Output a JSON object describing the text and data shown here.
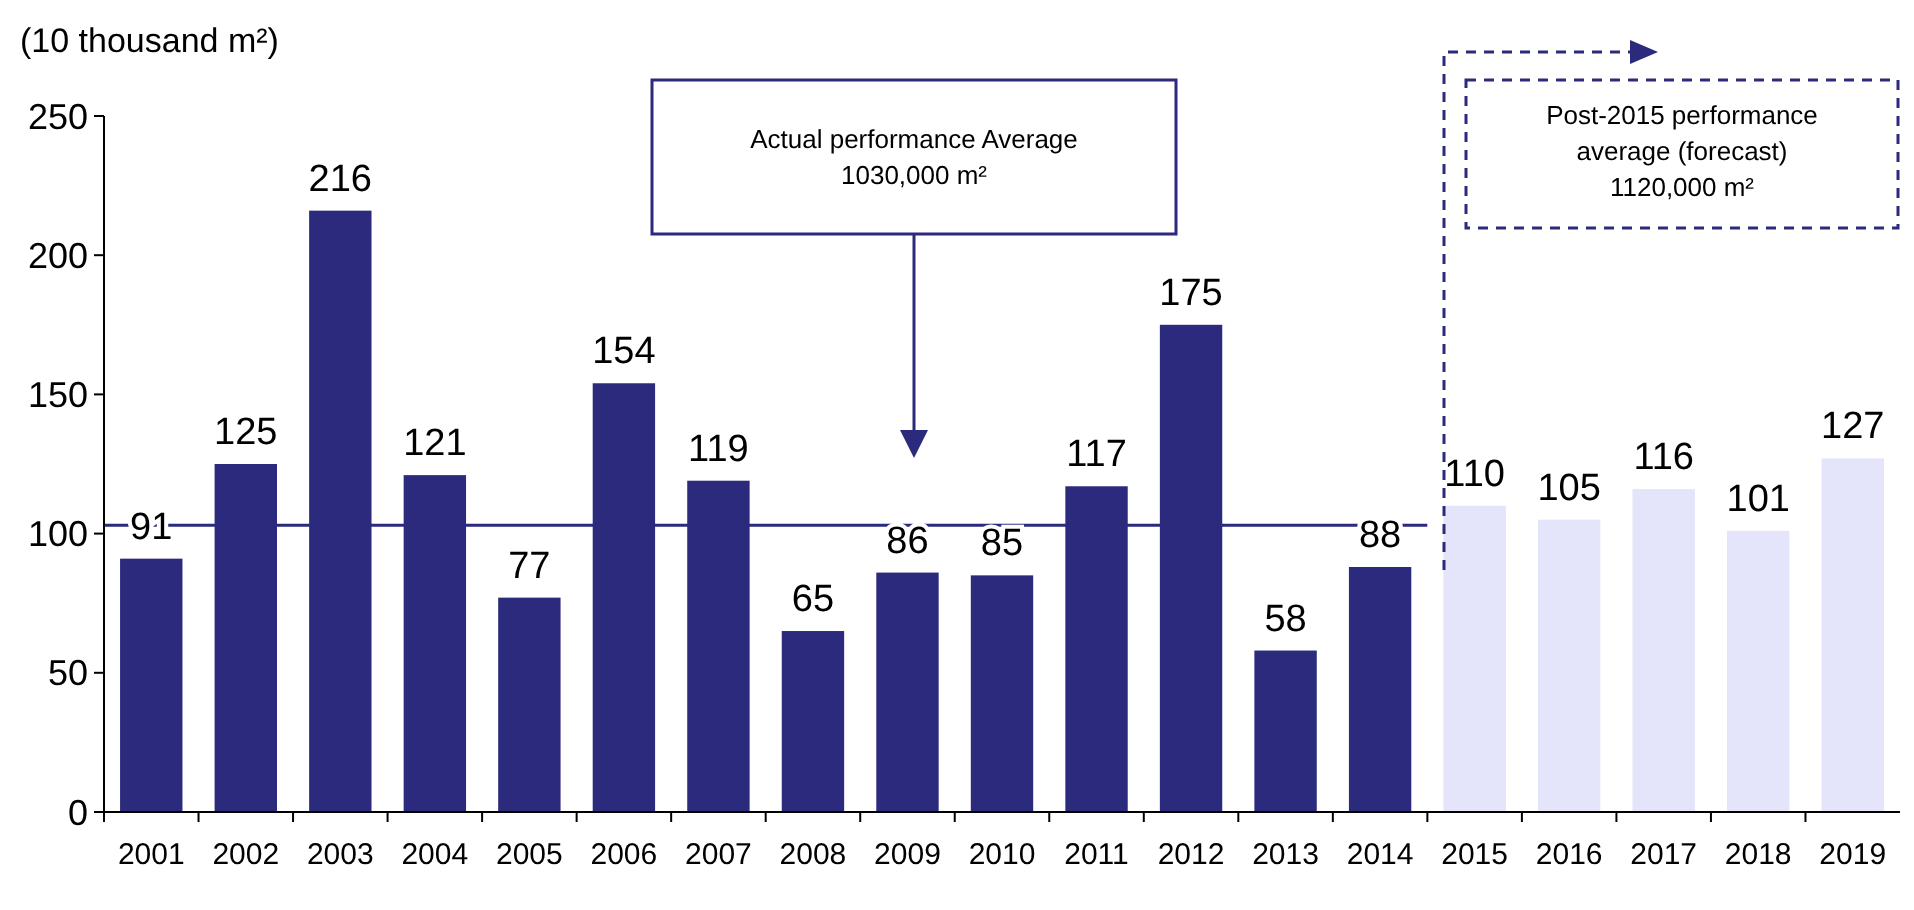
{
  "chart_data": {
    "type": "bar",
    "ylabel": "(10 thousand m²)",
    "categories": [
      "2001",
      "2002",
      "2003",
      "2004",
      "2005",
      "2006",
      "2007",
      "2008",
      "2009",
      "2010",
      "2011",
      "2012",
      "2013",
      "2014",
      "2015",
      "2016",
      "2017",
      "2018",
      "2019"
    ],
    "values": [
      91,
      125,
      216,
      121,
      77,
      154,
      119,
      65,
      86,
      85,
      117,
      175,
      58,
      88,
      110,
      105,
      116,
      101,
      127
    ],
    "colors": [
      "#2b2a7c",
      "#2b2a7c",
      "#2b2a7c",
      "#2b2a7c",
      "#2b2a7c",
      "#2b2a7c",
      "#2b2a7c",
      "#2b2a7c",
      "#2b2a7c",
      "#2b2a7c",
      "#2b2a7c",
      "#2b2a7c",
      "#2b2a7c",
      "#2b2a7c",
      "#e4e4fb",
      "#e4e4fb",
      "#e4e4fb",
      "#e4e4fb",
      "#e4e4fb"
    ],
    "ylim": [
      0,
      250
    ],
    "yticks": [
      0,
      50,
      100,
      150,
      200,
      250
    ],
    "grid": false,
    "data_labels": true,
    "ref_lines": [
      {
        "axis": "y",
        "value": 103,
        "color": "#2b2a7c"
      }
    ],
    "annotations": [
      "Actual performance Average\n1030,000 m²",
      "Post-2015 performance\naverage (forecast)\n1120,000 m²"
    ]
  }
}
